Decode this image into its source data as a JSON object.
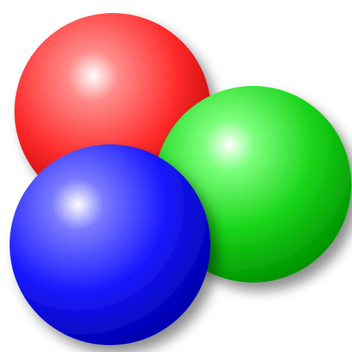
{
  "image": {
    "background": "#ffffff",
    "spheres": [
      {
        "name": "red-sphere",
        "highlight": "#ffffff",
        "light": "#ff8a8a",
        "base": "#ff2b2b",
        "dark": "#b30000"
      },
      {
        "name": "green-sphere",
        "highlight": "#ffffff",
        "light": "#7dff7d",
        "base": "#18d418",
        "dark": "#009400"
      },
      {
        "name": "blue-sphere",
        "highlight": "#ffffff",
        "light": "#7a7aff",
        "base": "#1a1aff",
        "dark": "#0000b0"
      }
    ]
  }
}
